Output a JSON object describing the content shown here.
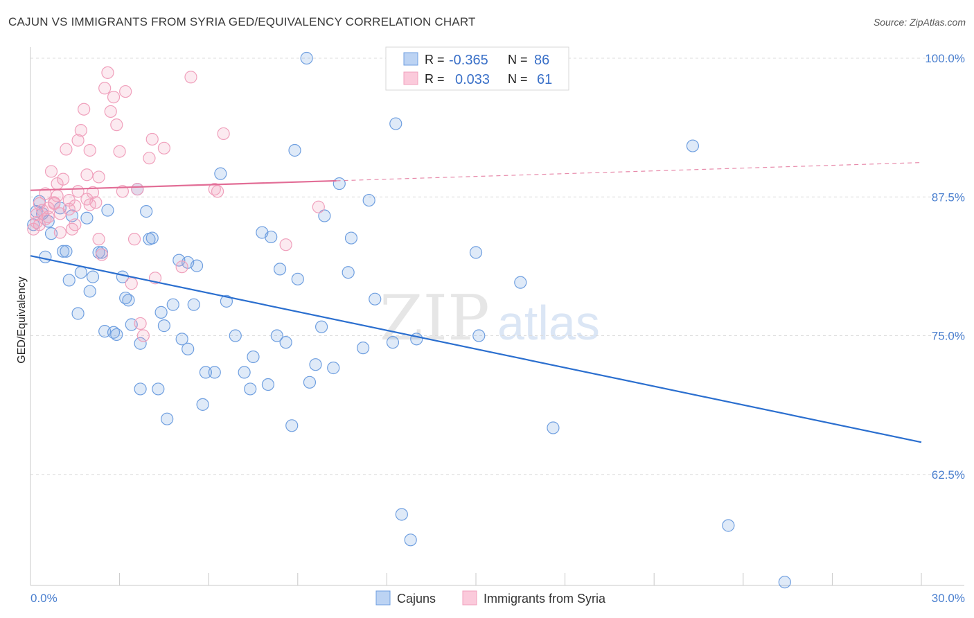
{
  "title": "CAJUN VS IMMIGRANTS FROM SYRIA GED/EQUIVALENCY CORRELATION CHART",
  "source": "Source: ZipAtlas.com",
  "watermark": {
    "zip": "ZIP",
    "atlas": "atlas"
  },
  "chart_data": {
    "type": "scatter",
    "ylabel": "GED/Equivalency",
    "xlim": [
      0,
      30
    ],
    "ylim": [
      52.5,
      101
    ],
    "y_ticks": [
      {
        "value": 100,
        "label": "100.0%"
      },
      {
        "value": 87.5,
        "label": "87.5%"
      },
      {
        "value": 75,
        "label": "75.0%"
      },
      {
        "value": 62.5,
        "label": "62.5%"
      }
    ],
    "x_tick_labels": [
      {
        "value": 0,
        "label": "0.0%"
      },
      {
        "value": 30,
        "label": "30.0%"
      }
    ],
    "x_minor_ticks": [
      0,
      3,
      6,
      9,
      12,
      15,
      18,
      21,
      24,
      27,
      30
    ],
    "colors": {
      "cajuns": "#6f9fe0",
      "syria": "#f0a0bc",
      "cajuns_line": "#2b6fcf",
      "syria_line": "#e26d96"
    },
    "stats": [
      {
        "r_label": "R =",
        "r_value": "-0.365",
        "n_label": "N =",
        "n_value": "86"
      },
      {
        "r_label": "R =",
        "r_value": "0.033",
        "n_label": "N =",
        "n_value": "61"
      }
    ],
    "series": [
      {
        "name": "Cajuns",
        "trend": {
          "x": [
            0,
            30
          ],
          "y": [
            82.2,
            65.4
          ],
          "dashed_from": null
        },
        "points": [
          [
            0.1,
            85.0
          ],
          [
            0.2,
            86.2
          ],
          [
            0.3,
            87.1
          ],
          [
            0.4,
            86.0
          ],
          [
            0.5,
            82.1
          ],
          [
            0.6,
            85.3
          ],
          [
            0.7,
            84.2
          ],
          [
            1.0,
            86.5
          ],
          [
            1.1,
            82.6
          ],
          [
            1.2,
            82.6
          ],
          [
            1.3,
            80.0
          ],
          [
            1.4,
            85.8
          ],
          [
            1.6,
            77.0
          ],
          [
            1.7,
            80.7
          ],
          [
            1.9,
            85.6
          ],
          [
            2.0,
            79.0
          ],
          [
            2.1,
            80.3
          ],
          [
            2.3,
            82.5
          ],
          [
            2.4,
            82.5
          ],
          [
            2.5,
            75.4
          ],
          [
            2.6,
            86.3
          ],
          [
            2.8,
            75.3
          ],
          [
            2.9,
            75.1
          ],
          [
            3.1,
            80.3
          ],
          [
            3.2,
            78.4
          ],
          [
            3.3,
            78.2
          ],
          [
            3.4,
            76.0
          ],
          [
            3.6,
            88.2
          ],
          [
            3.7,
            74.3
          ],
          [
            3.7,
            70.2
          ],
          [
            3.9,
            86.2
          ],
          [
            4.0,
            83.7
          ],
          [
            4.1,
            83.8
          ],
          [
            4.3,
            70.2
          ],
          [
            4.4,
            77.1
          ],
          [
            4.5,
            75.9
          ],
          [
            4.6,
            67.5
          ],
          [
            4.8,
            77.8
          ],
          [
            5.0,
            81.8
          ],
          [
            5.1,
            74.7
          ],
          [
            5.3,
            81.6
          ],
          [
            5.3,
            73.8
          ],
          [
            5.5,
            77.8
          ],
          [
            5.6,
            81.3
          ],
          [
            5.8,
            68.8
          ],
          [
            5.9,
            71.7
          ],
          [
            6.2,
            71.7
          ],
          [
            6.4,
            89.6
          ],
          [
            6.6,
            78.1
          ],
          [
            6.9,
            75.0
          ],
          [
            7.2,
            71.7
          ],
          [
            7.4,
            70.2
          ],
          [
            7.5,
            73.1
          ],
          [
            7.8,
            84.3
          ],
          [
            8.0,
            70.6
          ],
          [
            8.1,
            83.9
          ],
          [
            8.3,
            75.0
          ],
          [
            8.4,
            81.0
          ],
          [
            8.6,
            74.4
          ],
          [
            8.8,
            66.9
          ],
          [
            8.9,
            91.7
          ],
          [
            9.0,
            80.1
          ],
          [
            9.3,
            100.0
          ],
          [
            9.4,
            70.8
          ],
          [
            9.6,
            72.4
          ],
          [
            9.8,
            75.8
          ],
          [
            9.9,
            85.8
          ],
          [
            10.2,
            72.1
          ],
          [
            10.4,
            88.7
          ],
          [
            10.7,
            80.7
          ],
          [
            10.8,
            83.8
          ],
          [
            11.2,
            73.9
          ],
          [
            11.4,
            87.2
          ],
          [
            11.6,
            78.3
          ],
          [
            12.2,
            74.4
          ],
          [
            12.3,
            94.1
          ],
          [
            12.5,
            58.9
          ],
          [
            12.8,
            56.6
          ],
          [
            13.0,
            74.7
          ],
          [
            15.0,
            82.5
          ],
          [
            15.1,
            75.0
          ],
          [
            16.5,
            79.8
          ],
          [
            17.6,
            66.7
          ],
          [
            22.3,
            92.1
          ],
          [
            23.5,
            57.9
          ],
          [
            25.4,
            52.8
          ]
        ]
      },
      {
        "name": "Immigrants from Syria",
        "trend": {
          "x": [
            0,
            30
          ],
          "y": [
            88.1,
            90.6
          ],
          "dashed_from": 10.3
        },
        "points": [
          [
            0.1,
            84.6
          ],
          [
            0.2,
            85.2
          ],
          [
            0.2,
            85.9
          ],
          [
            0.3,
            85.0
          ],
          [
            0.4,
            86.3
          ],
          [
            0.5,
            87.8
          ],
          [
            0.6,
            86.5
          ],
          [
            0.6,
            85.7
          ],
          [
            0.7,
            89.8
          ],
          [
            0.8,
            87.0
          ],
          [
            0.9,
            88.7
          ],
          [
            0.9,
            87.6
          ],
          [
            1.0,
            84.3
          ],
          [
            1.1,
            89.1
          ],
          [
            1.2,
            91.8
          ],
          [
            1.3,
            87.2
          ],
          [
            1.3,
            86.4
          ],
          [
            1.4,
            84.6
          ],
          [
            1.5,
            86.7
          ],
          [
            1.6,
            88.0
          ],
          [
            1.6,
            92.6
          ],
          [
            1.7,
            93.5
          ],
          [
            1.8,
            95.4
          ],
          [
            1.9,
            89.5
          ],
          [
            2.0,
            91.7
          ],
          [
            2.1,
            87.9
          ],
          [
            2.2,
            87.0
          ],
          [
            2.3,
            89.3
          ],
          [
            2.3,
            83.7
          ],
          [
            2.4,
            82.3
          ],
          [
            2.5,
            97.3
          ],
          [
            2.6,
            98.7
          ],
          [
            2.7,
            95.2
          ],
          [
            2.8,
            96.5
          ],
          [
            2.9,
            94.0
          ],
          [
            3.0,
            91.6
          ],
          [
            3.1,
            88.0
          ],
          [
            3.2,
            97.0
          ],
          [
            3.4,
            79.7
          ],
          [
            3.5,
            83.7
          ],
          [
            3.6,
            88.2
          ],
          [
            3.7,
            76.1
          ],
          [
            3.8,
            75.0
          ],
          [
            4.0,
            91.0
          ],
          [
            4.1,
            92.7
          ],
          [
            4.2,
            80.2
          ],
          [
            4.5,
            91.9
          ],
          [
            5.1,
            81.2
          ],
          [
            5.4,
            98.3
          ],
          [
            6.2,
            88.2
          ],
          [
            6.3,
            88.0
          ],
          [
            6.5,
            93.2
          ],
          [
            8.6,
            83.2
          ],
          [
            9.7,
            86.6
          ],
          [
            0.3,
            86.9
          ],
          [
            0.5,
            85.5
          ],
          [
            1.0,
            86.0
          ],
          [
            1.5,
            85.0
          ],
          [
            2.0,
            86.8
          ],
          [
            0.8,
            86.9
          ],
          [
            1.9,
            87.3
          ]
        ]
      }
    ]
  },
  "legend_bottom": [
    {
      "label": "Cajuns"
    },
    {
      "label": "Immigrants from Syria"
    }
  ]
}
